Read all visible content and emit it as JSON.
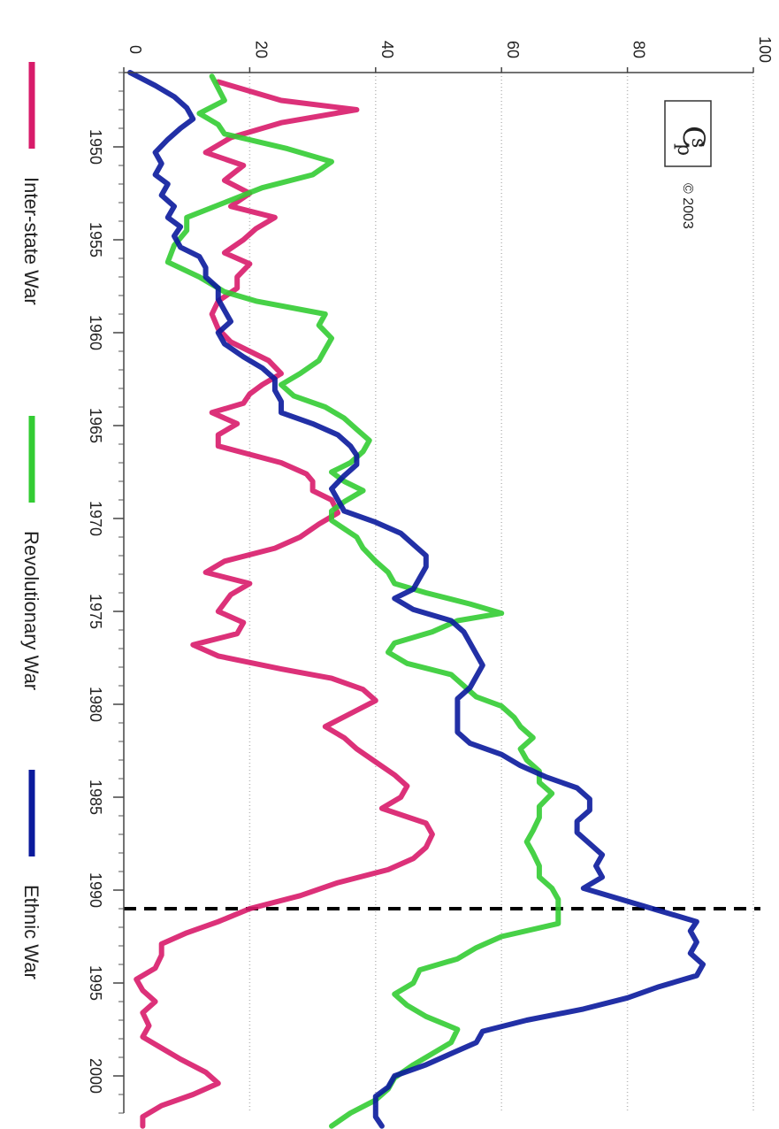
{
  "chart_data": {
    "type": "line",
    "orientation": "rotated 90 degrees clockwise",
    "title": "",
    "xlabel": "",
    "ylabel": "",
    "xlim": [
      1946,
      2002
    ],
    "ylim": [
      0,
      100
    ],
    "x_ticks": [
      "1950",
      "1955",
      "1960",
      "1965",
      "1970",
      "1975",
      "1980",
      "1985",
      "1990",
      "1995",
      "2000"
    ],
    "y_ticks": [
      "0",
      "20",
      "40",
      "60",
      "80",
      "100"
    ],
    "grid": "horizontal value lines, dotted",
    "legend_position": "bottom",
    "reference_line": {
      "x": 1991,
      "style": "dashed",
      "color": "#000000"
    },
    "series": [
      {
        "name": "Inter-state War",
        "color": "#d81b6a",
        "points": [
          [
            1946.5,
            15
          ],
          [
            1947.5,
            25
          ],
          [
            1948,
            37
          ],
          [
            1948.7,
            25
          ],
          [
            1949.5,
            17
          ],
          [
            1950.3,
            13
          ],
          [
            1951,
            19
          ],
          [
            1951.8,
            16
          ],
          [
            1952.5,
            20
          ],
          [
            1953.2,
            17
          ],
          [
            1953.8,
            24
          ],
          [
            1954.4,
            21
          ],
          [
            1955,
            19
          ],
          [
            1955.7,
            16
          ],
          [
            1956.3,
            20
          ],
          [
            1957,
            18
          ],
          [
            1957.6,
            18
          ],
          [
            1958.3,
            15
          ],
          [
            1959,
            14
          ],
          [
            1959.8,
            15
          ],
          [
            1960.5,
            17
          ],
          [
            1961.5,
            23
          ],
          [
            1962.2,
            25
          ],
          [
            1962.8,
            22
          ],
          [
            1963.3,
            20
          ],
          [
            1963.8,
            19
          ],
          [
            1964.3,
            14
          ],
          [
            1964.9,
            18
          ],
          [
            1965.5,
            15
          ],
          [
            1966.1,
            15
          ],
          [
            1967,
            25
          ],
          [
            1967.6,
            29
          ],
          [
            1968,
            30
          ],
          [
            1968.5,
            30
          ],
          [
            1969,
            33
          ],
          [
            1969.7,
            34
          ],
          [
            1970.3,
            31
          ],
          [
            1971,
            28
          ],
          [
            1971.6,
            24
          ],
          [
            1972.3,
            16
          ],
          [
            1972.9,
            13
          ],
          [
            1973.5,
            20
          ],
          [
            1974.1,
            17
          ],
          [
            1975,
            15
          ],
          [
            1975.6,
            19
          ],
          [
            1976.2,
            18
          ],
          [
            1976.8,
            11
          ],
          [
            1977.4,
            15
          ],
          [
            1978.1,
            25
          ],
          [
            1978.6,
            33
          ],
          [
            1979.2,
            38
          ],
          [
            1979.8,
            40
          ],
          [
            1980.5,
            36
          ],
          [
            1981.2,
            32
          ],
          [
            1981.8,
            35
          ],
          [
            1982.4,
            37
          ],
          [
            1983.1,
            40
          ],
          [
            1983.8,
            43
          ],
          [
            1984.4,
            45
          ],
          [
            1985,
            44
          ],
          [
            1985.6,
            41
          ],
          [
            1986.4,
            48
          ],
          [
            1987,
            49
          ],
          [
            1987.7,
            48
          ],
          [
            1988.3,
            46
          ],
          [
            1988.9,
            42
          ],
          [
            1989.6,
            34
          ],
          [
            1990.3,
            28
          ],
          [
            1991,
            20
          ],
          [
            1991.7,
            15
          ],
          [
            1992.3,
            10
          ],
          [
            1992.9,
            6
          ],
          [
            1993.5,
            6
          ],
          [
            1994.2,
            5
          ],
          [
            1994.8,
            2
          ],
          [
            1995.4,
            3
          ],
          [
            1996,
            5
          ],
          [
            1996.6,
            3
          ],
          [
            1997.3,
            4
          ],
          [
            1997.9,
            3
          ],
          [
            1998.5,
            6
          ],
          [
            1999.1,
            9
          ],
          [
            1999.8,
            13
          ],
          [
            2000.4,
            15
          ],
          [
            2001,
            11
          ],
          [
            2001.6,
            6
          ],
          [
            2002.2,
            3
          ],
          [
            2002.7,
            3
          ]
        ]
      },
      {
        "name": "Revolutionary War",
        "color": "#33cc33",
        "points": [
          [
            1946.2,
            14
          ],
          [
            1947.5,
            16
          ],
          [
            1948.2,
            12
          ],
          [
            1948.8,
            15
          ],
          [
            1949.3,
            16
          ],
          [
            1950.1,
            26
          ],
          [
            1950.8,
            33
          ],
          [
            1951.5,
            30
          ],
          [
            1952.2,
            22
          ],
          [
            1953,
            16
          ],
          [
            1953.8,
            10
          ],
          [
            1954.5,
            10
          ],
          [
            1955.3,
            8
          ],
          [
            1956.2,
            7
          ],
          [
            1957,
            12
          ],
          [
            1957.8,
            16
          ],
          [
            1958.3,
            21
          ],
          [
            1959,
            32
          ],
          [
            1959.6,
            31
          ],
          [
            1960.3,
            33
          ],
          [
            1960.9,
            32
          ],
          [
            1961.5,
            31
          ],
          [
            1962.2,
            28
          ],
          [
            1962.8,
            25
          ],
          [
            1963.4,
            27
          ],
          [
            1964,
            32
          ],
          [
            1964.6,
            35
          ],
          [
            1965.2,
            37
          ],
          [
            1965.8,
            39
          ],
          [
            1966.4,
            38
          ],
          [
            1967,
            36
          ],
          [
            1967.5,
            33
          ],
          [
            1968,
            35
          ],
          [
            1968.5,
            38
          ],
          [
            1969.1,
            35
          ],
          [
            1969.6,
            33
          ],
          [
            1970.1,
            33
          ],
          [
            1971,
            37
          ],
          [
            1971.6,
            38
          ],
          [
            1972.3,
            40
          ],
          [
            1972.9,
            42
          ],
          [
            1973.5,
            43
          ],
          [
            1974,
            48
          ],
          [
            1974.6,
            55
          ],
          [
            1975.1,
            60
          ],
          [
            1975.5,
            53
          ],
          [
            1976.1,
            49
          ],
          [
            1976.7,
            43
          ],
          [
            1977.2,
            42
          ],
          [
            1977.8,
            45
          ],
          [
            1978.4,
            52
          ],
          [
            1979,
            54
          ],
          [
            1979.6,
            56
          ],
          [
            1980.1,
            60
          ],
          [
            1980.7,
            62
          ],
          [
            1981.2,
            63
          ],
          [
            1981.8,
            65
          ],
          [
            1982.4,
            63
          ],
          [
            1983,
            64
          ],
          [
            1983.6,
            66
          ],
          [
            1984.2,
            66
          ],
          [
            1984.8,
            68
          ],
          [
            1985.5,
            66
          ],
          [
            1986.1,
            66
          ],
          [
            1986.8,
            65
          ],
          [
            1987.4,
            64
          ],
          [
            1988,
            65
          ],
          [
            1988.7,
            66
          ],
          [
            1989.3,
            66
          ],
          [
            1989.9,
            68
          ],
          [
            1990.5,
            69
          ],
          [
            1991.1,
            69
          ],
          [
            1991.8,
            69
          ],
          [
            1992.5,
            60
          ],
          [
            1993.1,
            56
          ],
          [
            1993.7,
            53
          ],
          [
            1994.3,
            47
          ],
          [
            1995,
            46
          ],
          [
            1995.6,
            43
          ],
          [
            1996.2,
            45
          ],
          [
            1996.8,
            48
          ],
          [
            1997.5,
            53
          ],
          [
            1998.2,
            52
          ],
          [
            1998.8,
            49
          ],
          [
            1999.4,
            46
          ],
          [
            2000.1,
            43
          ],
          [
            2000.7,
            42
          ],
          [
            2001.3,
            40
          ],
          [
            2002,
            36
          ],
          [
            2002.7,
            33
          ]
        ]
      },
      {
        "name": "Ethnic War",
        "color": "#0a1a9c",
        "points": [
          [
            1946,
            1
          ],
          [
            1946.7,
            5
          ],
          [
            1947.3,
            8
          ],
          [
            1947.9,
            10
          ],
          [
            1948.5,
            11
          ],
          [
            1949,
            9
          ],
          [
            1949.6,
            7
          ],
          [
            1950.3,
            5
          ],
          [
            1950.9,
            6
          ],
          [
            1951.5,
            5
          ],
          [
            1952,
            7
          ],
          [
            1952.6,
            6
          ],
          [
            1953.2,
            8
          ],
          [
            1953.8,
            7
          ],
          [
            1954.3,
            9
          ],
          [
            1954.8,
            8
          ],
          [
            1955.4,
            9
          ],
          [
            1955.9,
            12
          ],
          [
            1956.5,
            13
          ],
          [
            1957,
            13
          ],
          [
            1957.6,
            15
          ],
          [
            1958.2,
            15
          ],
          [
            1958.8,
            16
          ],
          [
            1959.4,
            17
          ],
          [
            1960,
            15
          ],
          [
            1960.6,
            16
          ],
          [
            1961.3,
            19
          ],
          [
            1961.9,
            22
          ],
          [
            1962.5,
            24
          ],
          [
            1963.1,
            24
          ],
          [
            1963.7,
            25
          ],
          [
            1964.3,
            25
          ],
          [
            1964.9,
            30
          ],
          [
            1965.5,
            34
          ],
          [
            1966.1,
            36
          ],
          [
            1966.6,
            37
          ],
          [
            1967.1,
            37
          ],
          [
            1967.7,
            35
          ],
          [
            1968.4,
            33
          ],
          [
            1969,
            34
          ],
          [
            1969.6,
            35
          ],
          [
            1970.2,
            40
          ],
          [
            1970.8,
            44
          ],
          [
            1971.4,
            46
          ],
          [
            1972,
            48
          ],
          [
            1972.6,
            48
          ],
          [
            1973.2,
            47
          ],
          [
            1973.8,
            46
          ],
          [
            1974.3,
            43
          ],
          [
            1974.9,
            46
          ],
          [
            1975.5,
            52
          ],
          [
            1976.1,
            54
          ],
          [
            1976.7,
            55
          ],
          [
            1977.3,
            56
          ],
          [
            1977.9,
            57
          ],
          [
            1978.5,
            56
          ],
          [
            1979.1,
            55
          ],
          [
            1979.7,
            53
          ],
          [
            1980.3,
            53
          ],
          [
            1980.9,
            53
          ],
          [
            1981.5,
            53
          ],
          [
            1982.1,
            55
          ],
          [
            1982.7,
            60
          ],
          [
            1983.3,
            63
          ],
          [
            1983.9,
            67
          ],
          [
            1984.5,
            72
          ],
          [
            1985.1,
            74
          ],
          [
            1985.7,
            74
          ],
          [
            1986.3,
            72
          ],
          [
            1986.9,
            72
          ],
          [
            1987.5,
            74
          ],
          [
            1988.1,
            76
          ],
          [
            1988.7,
            75
          ],
          [
            1989.3,
            76
          ],
          [
            1989.9,
            73
          ],
          [
            1990.5,
            79
          ],
          [
            1991.1,
            85
          ],
          [
            1991.7,
            91
          ],
          [
            1992.2,
            90
          ],
          [
            1992.8,
            91
          ],
          [
            1993.4,
            90
          ],
          [
            1994,
            92
          ],
          [
            1994.6,
            91
          ],
          [
            1995.2,
            85
          ],
          [
            1995.8,
            80
          ],
          [
            1996.4,
            73
          ],
          [
            1997,
            64
          ],
          [
            1997.6,
            57
          ],
          [
            1998.2,
            56
          ],
          [
            1998.8,
            52
          ],
          [
            1999.4,
            48
          ],
          [
            2000,
            43
          ],
          [
            2000.6,
            42
          ],
          [
            2001.1,
            40
          ],
          [
            2001.7,
            40
          ],
          [
            2002.2,
            40
          ],
          [
            2002.7,
            41
          ]
        ]
      }
    ]
  },
  "copyright": "© 2003"
}
